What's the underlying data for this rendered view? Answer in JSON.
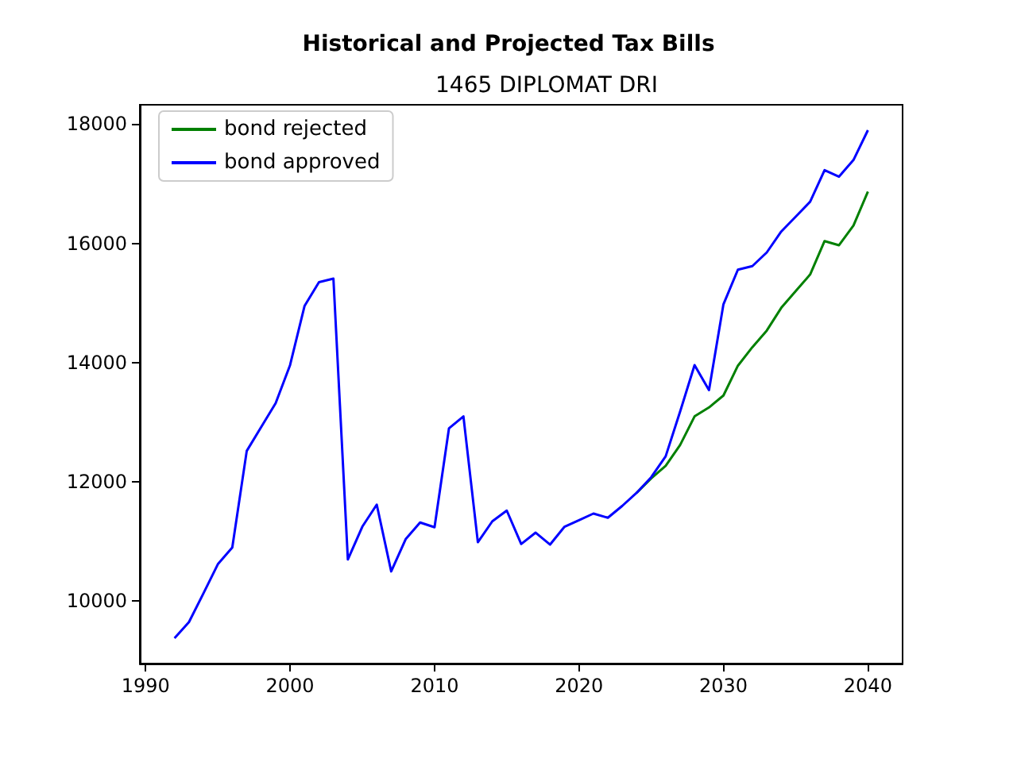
{
  "chart_data": {
    "type": "line",
    "title": "Historical and Projected Tax Bills",
    "subtitle": "1465 DIPLOMAT DRI",
    "xlim": [
      1989.6,
      2042.4
    ],
    "xticks": [
      1990,
      2000,
      2010,
      2020,
      2030,
      2040
    ],
    "ylim": [
      8954,
      18326
    ],
    "yticks": [
      10000,
      12000,
      14000,
      16000,
      18000
    ],
    "grid": false,
    "legend": "top left",
    "marker": "none",
    "line_style": "solid",
    "series": [
      {
        "name": "bond rejected",
        "color": "#008000",
        "x": [
          2024,
          2025,
          2026,
          2027,
          2028,
          2029,
          2030,
          2031,
          2032,
          2033,
          2034,
          2035,
          2036,
          2037,
          2038,
          2039,
          2040
        ],
        "values": [
          11820,
          12060,
          12270,
          12620,
          13100,
          13250,
          13450,
          13950,
          14260,
          14540,
          14920,
          15200,
          15480,
          16040,
          15970,
          16300,
          16870
        ]
      },
      {
        "name": "bond approved",
        "color": "#0000ff",
        "x": [
          1992,
          1993,
          1994,
          1995,
          1996,
          1997,
          1998,
          1999,
          2000,
          2001,
          2002,
          2003,
          2004,
          2005,
          2006,
          2007,
          2008,
          2009,
          2010,
          2011,
          2012,
          2013,
          2014,
          2015,
          2016,
          2017,
          2018,
          2019,
          2020,
          2021,
          2022,
          2023,
          2024,
          2025,
          2026,
          2027,
          2028,
          2029,
          2030,
          2031,
          2032,
          2033,
          2034,
          2035,
          2036,
          2037,
          2038,
          2039,
          2040
        ],
        "values": [
          9380,
          9650,
          10130,
          10620,
          10900,
          12520,
          12920,
          13320,
          13960,
          14950,
          15350,
          15410,
          10700,
          11250,
          11620,
          10500,
          11040,
          11320,
          11240,
          12900,
          13100,
          10990,
          11340,
          11520,
          10960,
          11150,
          10950,
          11250,
          11360,
          11470,
          11400,
          11600,
          11820,
          12080,
          12430,
          13180,
          13960,
          13540,
          14980,
          15560,
          15620,
          15850,
          16200,
          16450,
          16700,
          17230,
          17120,
          17400,
          17900
        ]
      }
    ]
  }
}
